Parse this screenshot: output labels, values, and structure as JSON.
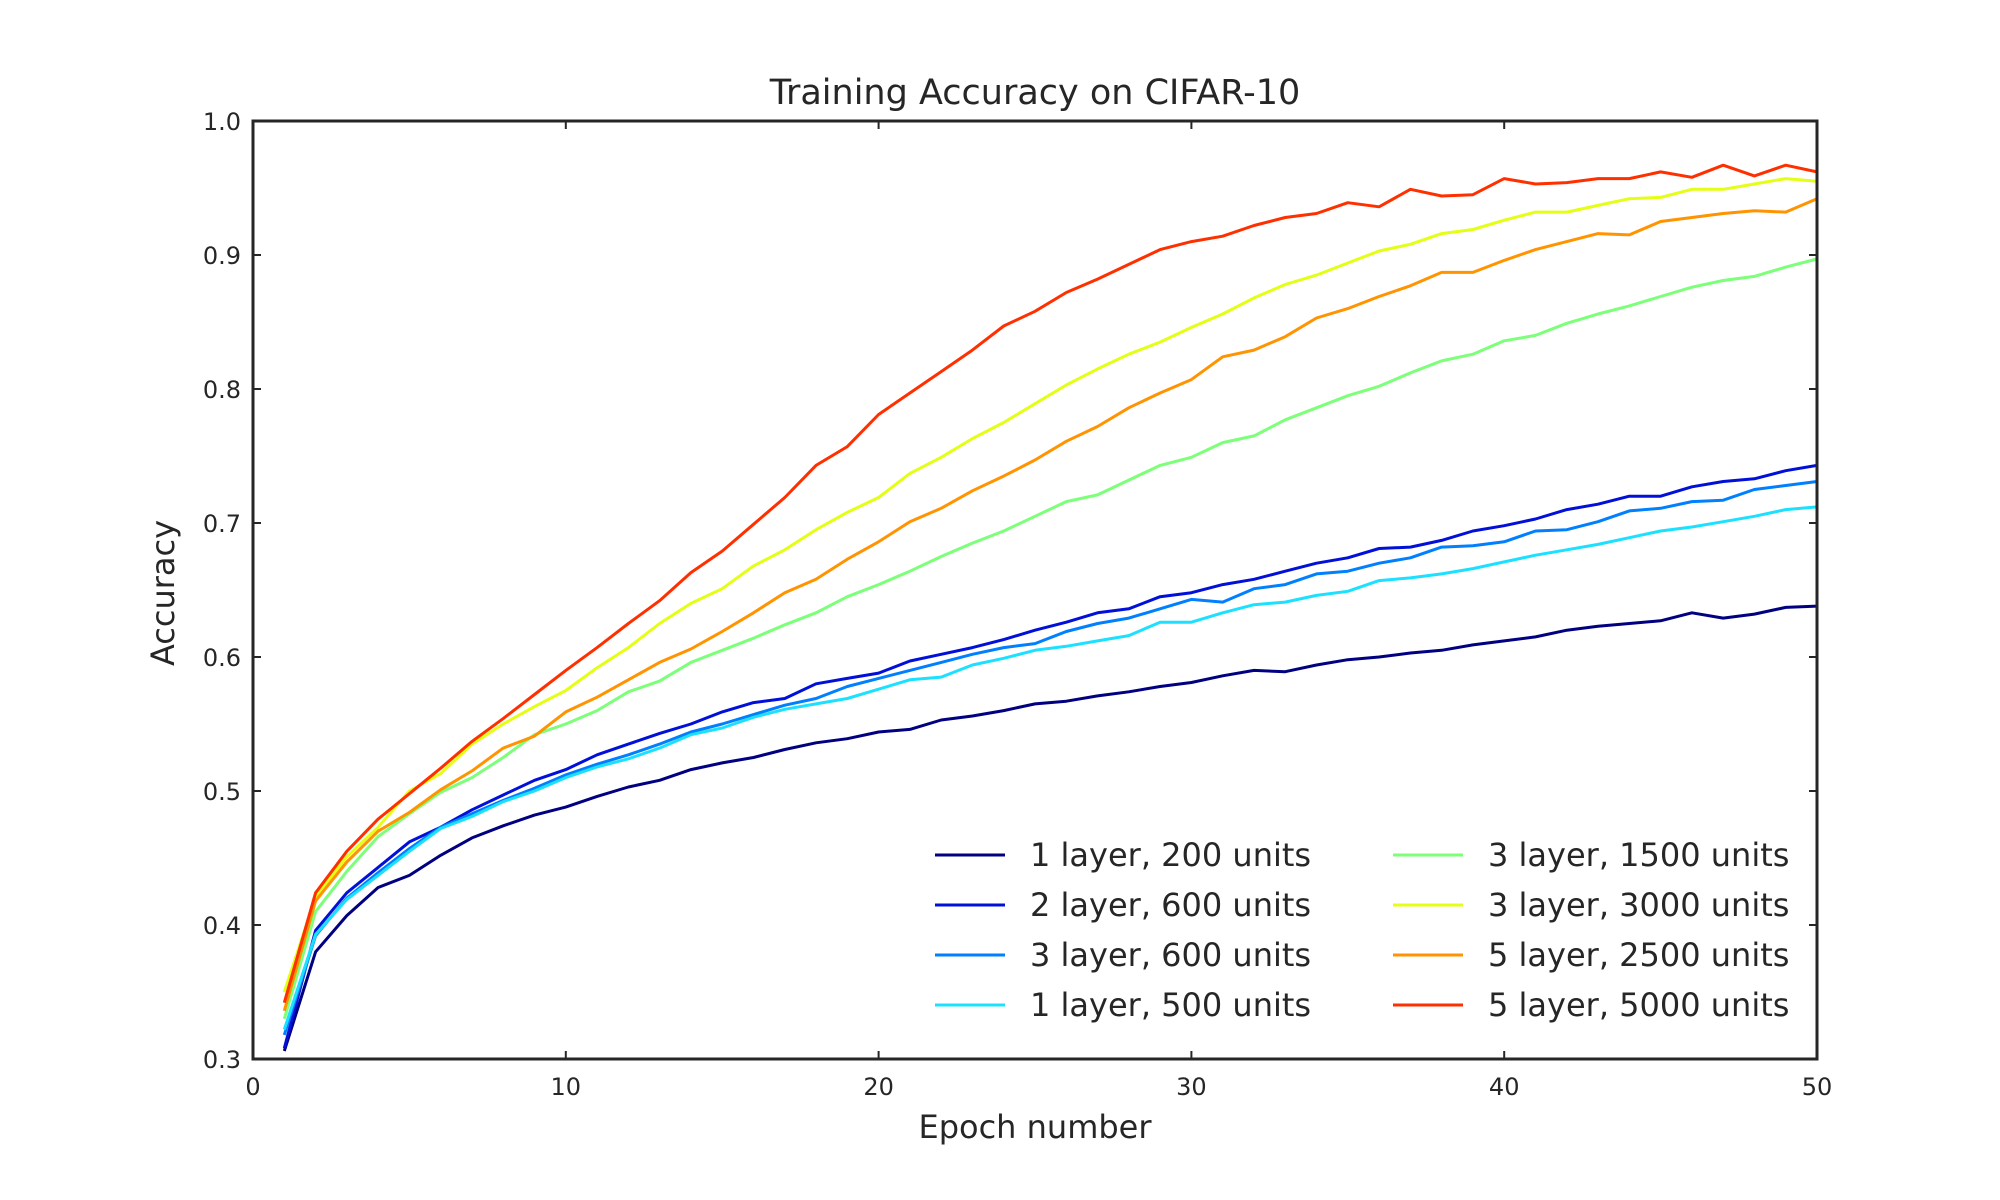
{
  "chart_data": {
    "type": "line",
    "title": "Training Accuracy on CIFAR-10",
    "xlabel": "Epoch number",
    "ylabel": "Accuracy",
    "xlim": [
      0,
      50
    ],
    "ylim": [
      0.3,
      1.0
    ],
    "xticks": [
      0,
      10,
      20,
      30,
      40,
      50
    ],
    "xtick_labels": [
      "0",
      "10",
      "20",
      "30",
      "40",
      "50"
    ],
    "yticks": [
      0.3,
      0.4,
      0.5,
      0.6,
      0.7,
      0.8,
      0.9,
      1.0
    ],
    "ytick_labels": [
      "0.3",
      "0.4",
      "0.5",
      "0.6",
      "0.7",
      "0.8",
      "0.9",
      "1.0"
    ],
    "grid": false,
    "legend_position": "lower-right",
    "legend_columns": 2,
    "x": [
      1,
      2,
      3,
      4,
      5,
      6,
      7,
      8,
      9,
      10,
      11,
      12,
      13,
      14,
      15,
      16,
      17,
      18,
      19,
      20,
      21,
      22,
      23,
      24,
      25,
      26,
      27,
      28,
      29,
      30,
      31,
      32,
      33,
      34,
      35,
      36,
      37,
      38,
      39,
      40,
      41,
      42,
      43,
      44,
      45,
      46,
      47,
      48,
      49,
      50
    ],
    "series": [
      {
        "name": "1 layer, 200 units",
        "color": "#000080",
        "values": [
          0.306,
          0.38,
          0.407,
          0.428,
          0.437,
          0.452,
          0.465,
          0.474,
          0.482,
          0.488,
          0.496,
          0.503,
          0.508,
          0.516,
          0.521,
          0.525,
          0.531,
          0.536,
          0.539,
          0.544,
          0.546,
          0.553,
          0.556,
          0.56,
          0.565,
          0.567,
          0.571,
          0.574,
          0.578,
          0.581,
          0.586,
          0.59,
          0.589,
          0.594,
          0.598,
          0.6,
          0.603,
          0.605,
          0.609,
          0.612,
          0.615,
          0.62,
          0.623,
          0.625,
          0.627,
          0.633,
          0.629,
          0.632,
          0.637,
          0.638
        ]
      },
      {
        "name": "2 layer, 600 units",
        "color": "#0010d8",
        "values": [
          0.308,
          0.396,
          0.424,
          0.443,
          0.462,
          0.473,
          0.486,
          0.497,
          0.508,
          0.516,
          0.527,
          0.535,
          0.543,
          0.55,
          0.559,
          0.566,
          0.569,
          0.58,
          0.584,
          0.588,
          0.597,
          0.602,
          0.607,
          0.613,
          0.62,
          0.626,
          0.633,
          0.636,
          0.645,
          0.648,
          0.654,
          0.658,
          0.664,
          0.67,
          0.674,
          0.681,
          0.682,
          0.687,
          0.694,
          0.698,
          0.703,
          0.71,
          0.714,
          0.72,
          0.72,
          0.727,
          0.731,
          0.733,
          0.739,
          0.743
        ]
      },
      {
        "name": "3 layer, 600 units",
        "color": "#0080ff",
        "values": [
          0.318,
          0.392,
          0.42,
          0.439,
          0.457,
          0.473,
          0.483,
          0.493,
          0.502,
          0.512,
          0.52,
          0.527,
          0.535,
          0.544,
          0.55,
          0.557,
          0.564,
          0.569,
          0.578,
          0.584,
          0.59,
          0.596,
          0.602,
          0.607,
          0.61,
          0.619,
          0.625,
          0.629,
          0.636,
          0.643,
          0.641,
          0.651,
          0.654,
          0.662,
          0.664,
          0.67,
          0.674,
          0.682,
          0.683,
          0.686,
          0.694,
          0.695,
          0.701,
          0.709,
          0.711,
          0.716,
          0.717,
          0.725,
          0.728,
          0.731
        ]
      },
      {
        "name": "1 layer, 500 units",
        "color": "#1ce0ff",
        "values": [
          0.322,
          0.393,
          0.419,
          0.437,
          0.455,
          0.472,
          0.481,
          0.492,
          0.5,
          0.51,
          0.518,
          0.524,
          0.532,
          0.542,
          0.547,
          0.555,
          0.561,
          0.565,
          0.569,
          0.576,
          0.583,
          0.585,
          0.594,
          0.599,
          0.605,
          0.608,
          0.612,
          0.616,
          0.626,
          0.626,
          0.633,
          0.639,
          0.641,
          0.646,
          0.649,
          0.657,
          0.659,
          0.662,
          0.666,
          0.671,
          0.676,
          0.68,
          0.684,
          0.689,
          0.694,
          0.697,
          0.701,
          0.705,
          0.71,
          0.712
        ]
      },
      {
        "name": "3 layer, 1500 units",
        "color": "#7cff79",
        "values": [
          0.33,
          0.41,
          0.44,
          0.466,
          0.483,
          0.499,
          0.51,
          0.525,
          0.542,
          0.55,
          0.56,
          0.574,
          0.582,
          0.596,
          0.605,
          0.614,
          0.624,
          0.633,
          0.645,
          0.654,
          0.664,
          0.675,
          0.685,
          0.694,
          0.705,
          0.716,
          0.721,
          0.732,
          0.743,
          0.749,
          0.76,
          0.765,
          0.777,
          0.786,
          0.795,
          0.802,
          0.812,
          0.821,
          0.826,
          0.836,
          0.84,
          0.849,
          0.856,
          0.862,
          0.869,
          0.876,
          0.881,
          0.884,
          0.891,
          0.897
        ]
      },
      {
        "name": "3 layer, 3000 units",
        "color": "#e4ff13",
        "values": [
          0.35,
          0.421,
          0.451,
          0.473,
          0.5,
          0.513,
          0.535,
          0.55,
          0.563,
          0.575,
          0.592,
          0.607,
          0.625,
          0.64,
          0.651,
          0.668,
          0.68,
          0.695,
          0.708,
          0.719,
          0.737,
          0.749,
          0.763,
          0.775,
          0.789,
          0.803,
          0.815,
          0.826,
          0.835,
          0.846,
          0.856,
          0.868,
          0.878,
          0.885,
          0.894,
          0.903,
          0.908,
          0.916,
          0.919,
          0.926,
          0.932,
          0.932,
          0.937,
          0.942,
          0.943,
          0.949,
          0.949,
          0.953,
          0.957,
          0.955
        ]
      },
      {
        "name": "5 layer, 2500 units",
        "color": "#ff9400",
        "values": [
          0.336,
          0.418,
          0.447,
          0.47,
          0.484,
          0.501,
          0.515,
          0.532,
          0.541,
          0.559,
          0.57,
          0.583,
          0.596,
          0.606,
          0.619,
          0.633,
          0.648,
          0.658,
          0.673,
          0.686,
          0.701,
          0.711,
          0.724,
          0.735,
          0.747,
          0.761,
          0.772,
          0.786,
          0.797,
          0.807,
          0.824,
          0.829,
          0.839,
          0.853,
          0.86,
          0.869,
          0.877,
          0.887,
          0.887,
          0.896,
          0.904,
          0.91,
          0.916,
          0.915,
          0.925,
          0.928,
          0.931,
          0.933,
          0.932,
          0.942
        ]
      },
      {
        "name": "5 layer, 5000 units",
        "color": "#ff3000",
        "values": [
          0.342,
          0.424,
          0.455,
          0.479,
          0.498,
          0.517,
          0.537,
          0.554,
          0.572,
          0.59,
          0.607,
          0.625,
          0.642,
          0.663,
          0.679,
          0.699,
          0.719,
          0.743,
          0.757,
          0.781,
          0.797,
          0.813,
          0.829,
          0.847,
          0.858,
          0.872,
          0.882,
          0.893,
          0.904,
          0.91,
          0.914,
          0.922,
          0.928,
          0.931,
          0.939,
          0.936,
          0.949,
          0.944,
          0.945,
          0.957,
          0.953,
          0.954,
          0.957,
          0.957,
          0.962,
          0.958,
          0.967,
          0.959,
          0.967,
          0.962
        ]
      }
    ]
  }
}
